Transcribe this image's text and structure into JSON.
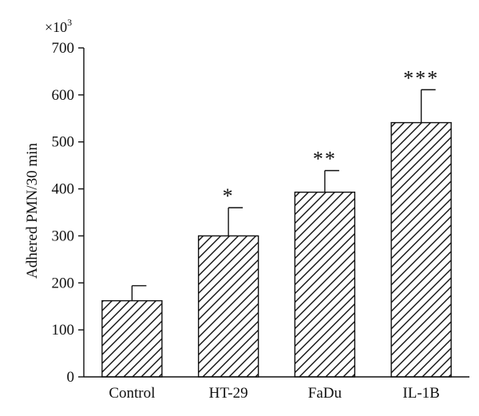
{
  "chart_data": {
    "type": "bar",
    "title": "",
    "ylabel": "Adhered PMN/30 min",
    "xlabel": "",
    "y_multiplier_label": "×10",
    "y_multiplier_exponent": "3",
    "ylim": [
      0,
      700
    ],
    "yticks": [
      "0",
      "100",
      "200",
      "300",
      "400",
      "500",
      "600",
      "700"
    ],
    "categories": [
      "Control",
      "HT-29",
      "FaDu",
      "IL-1B"
    ],
    "values": [
      162,
      300,
      393,
      541
    ],
    "errors": [
      32,
      60,
      46,
      70
    ],
    "significance": [
      "",
      "*",
      "**",
      "***"
    ],
    "bar_fill": "diagonal-hatch",
    "colors": {
      "ink": "#111111",
      "background": "#ffffff"
    },
    "grid": false,
    "legend": "none"
  }
}
